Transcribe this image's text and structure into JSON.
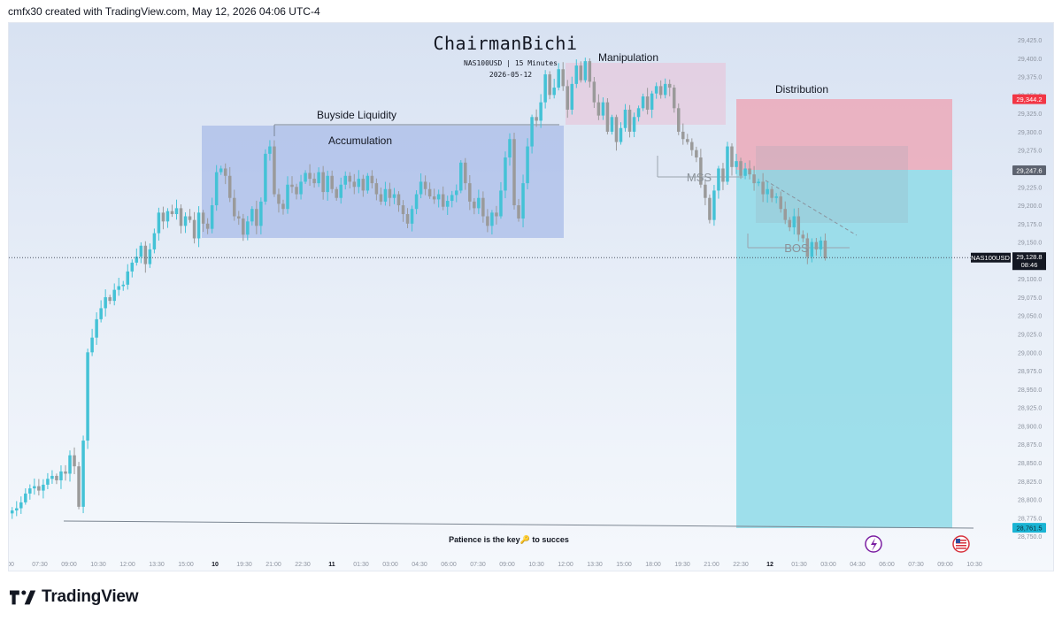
{
  "header": {
    "attribution": "cmfx30 created with TradingView.com, May 12, 2026 04:06 UTC-4"
  },
  "footer": {
    "brand": "TradingView"
  },
  "chart_data": {
    "type": "candlestick",
    "title": "ChairmanBichi",
    "subtitle": "NAS100USD | 15 Minutes",
    "date": "2026-05-12",
    "symbol": "NAS100USD",
    "last_price": "29,128.8",
    "countdown": "08:46",
    "y_ticks": [
      "29,425.0",
      "29,400.0",
      "29,375.0",
      "29,350.0",
      "29,325.0",
      "29,300.0",
      "29,275.0",
      "29,250.0",
      "29,225.0",
      "29,200.0",
      "29,175.0",
      "29,150.0",
      "29,125.0",
      "29,100.0",
      "29,075.0",
      "29,050.0",
      "29,025.0",
      "29,000.0",
      "28,975.0",
      "28,950.0",
      "28,925.0",
      "28,900.0",
      "28,875.0",
      "28,850.0",
      "28,825.0",
      "28,800.0",
      "28,775.0",
      "28,750.0"
    ],
    "x_ticks": [
      "00",
      "07:30",
      "09:00",
      "10:30",
      "12:00",
      "13:30",
      "15:00",
      "10",
      "19:30",
      "21:00",
      "22:30",
      "11",
      "01:30",
      "03:00",
      "04:30",
      "06:00",
      "07:30",
      "09:00",
      "10:30",
      "12:00",
      "13:30",
      "15:00",
      "18:00",
      "19:30",
      "21:00",
      "22:30",
      "12",
      "01:30",
      "03:00",
      "04:30",
      "06:00",
      "07:30",
      "09:00",
      "10:30"
    ],
    "bold_x_ticks": [
      "10",
      "11",
      "12"
    ],
    "price_labels": {
      "stop": "29,344.2",
      "entry": "29,247.6",
      "target": "28,761.5"
    },
    "zones": {
      "accumulation": "Accumulation",
      "buyside": "Buyside Liquidity",
      "manipulation": "Manipulation",
      "distribution": "Distribution",
      "mss": "MSS",
      "bos": "BOS"
    },
    "note": "Patience is the key🔑 to succes",
    "path": [
      28785,
      28788,
      28796,
      28808,
      28815,
      28818,
      28812,
      28820,
      28828,
      28832,
      28826,
      28838,
      28835,
      28860,
      28845,
      28790,
      28880,
      29000,
      29020,
      29045,
      29060,
      29075,
      29070,
      29085,
      29090,
      29092,
      29110,
      29122,
      29130,
      29145,
      29120,
      29140,
      29162,
      29190,
      29178,
      29192,
      29188,
      29196,
      29172,
      29185,
      29180,
      29155,
      29190,
      29175,
      29168,
      29200,
      29245,
      29250,
      29240,
      29210,
      29185,
      29182,
      29160,
      29178,
      29195,
      29172,
      29205,
      29270,
      29280,
      29215,
      29202,
      29195,
      29228,
      29225,
      29215,
      29232,
      29244,
      29236,
      29230,
      29245,
      29218,
      29240,
      29222,
      29210,
      29228,
      29240,
      29232,
      29225,
      29236,
      29220,
      29240,
      29230,
      29215,
      29205,
      29222,
      29210,
      29215,
      29200,
      29188,
      29175,
      29195,
      29215,
      29232,
      29222,
      29212,
      29208,
      29215,
      29198,
      29206,
      29214,
      29220,
      29258,
      29230,
      29205,
      29196,
      29210,
      29185,
      29172,
      29190,
      29185,
      29220,
      29265,
      29290,
      29200,
      29182,
      29230,
      29280,
      29320,
      29315,
      29340,
      29378,
      29350,
      29360,
      29385,
      29362,
      29330,
      29365,
      29390,
      29370,
      29396,
      29368,
      29340,
      29322,
      29340,
      29300,
      29320,
      29286,
      29305,
      29330,
      29300,
      29320,
      29332,
      29348,
      29330,
      29352,
      29362,
      29350,
      29365,
      29360,
      29332,
      29300,
      29290,
      29286,
      29275,
      29265,
      29228,
      29210,
      29180,
      29220,
      29250,
      29232,
      29280,
      29252,
      29260,
      29240,
      29250,
      29242,
      29230,
      29232,
      29215,
      29222,
      29210,
      29212,
      29195,
      29180,
      29170,
      29185,
      29160,
      29155,
      29130,
      29150,
      29140,
      29152,
      29128
    ]
  }
}
